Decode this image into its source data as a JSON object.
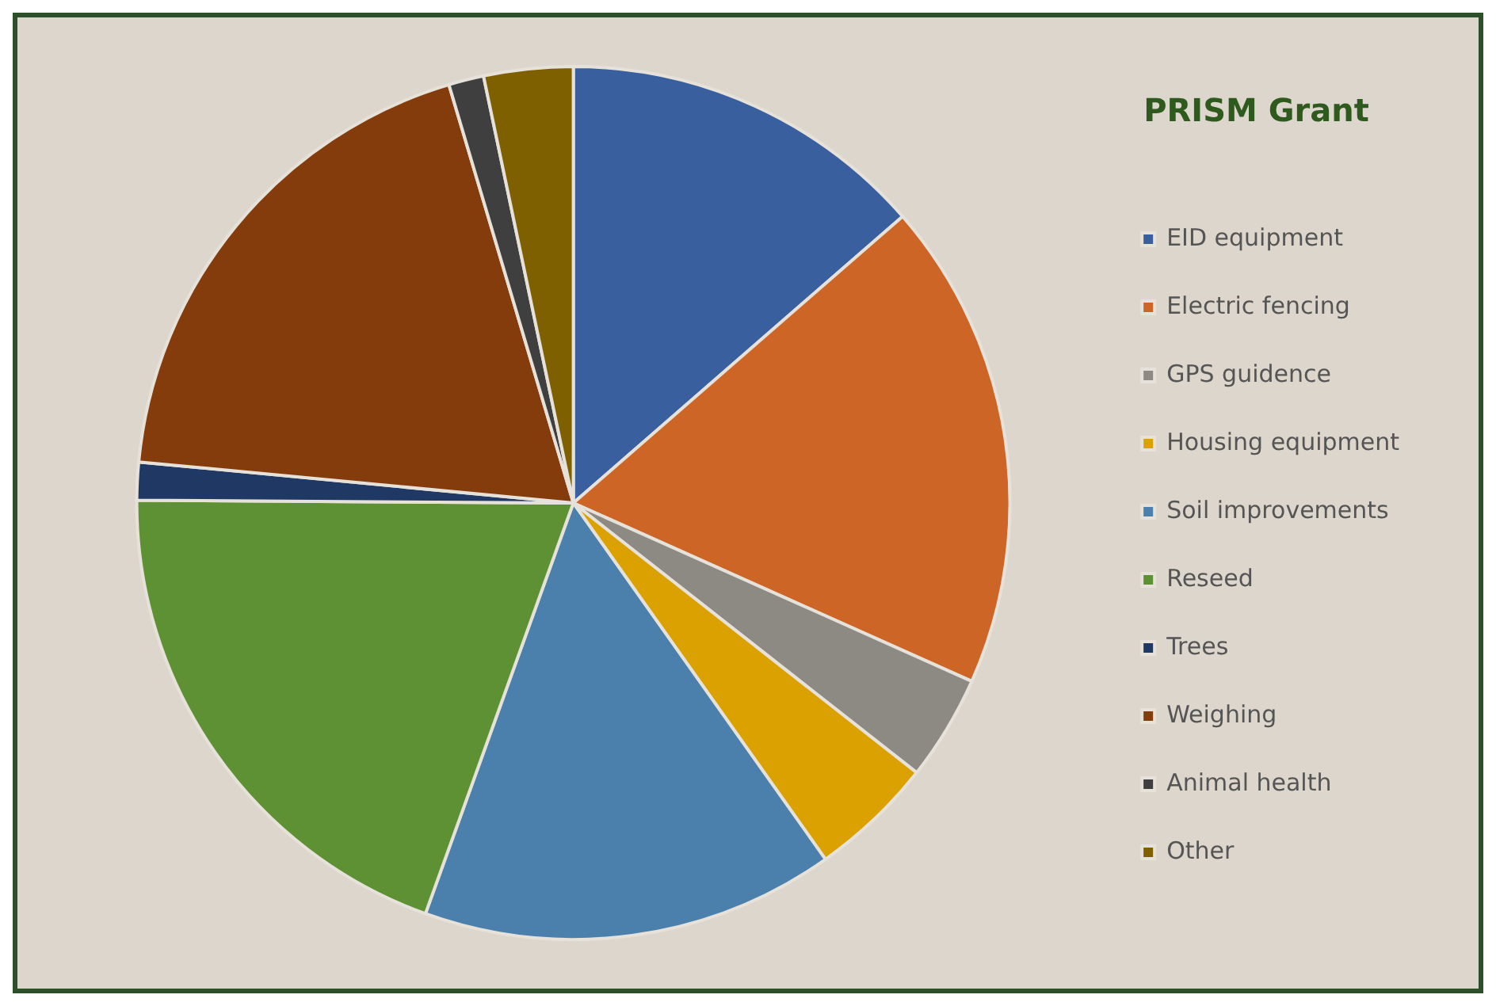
{
  "chart_data": {
    "type": "pie",
    "title": "PRISM Grant",
    "categories": [
      "EID equipment",
      "Electric fencing",
      "GPS guidence",
      "Housing equipment",
      "Soil improvements",
      "Reseed",
      "Trees",
      "Weighing",
      "Animal health",
      "Other"
    ],
    "values": [
      13.6,
      18.1,
      3.9,
      4.6,
      15.3,
      19.6,
      1.4,
      18.9,
      1.3,
      3.3
    ],
    "colors": [
      "#3a5f9e",
      "#cd6527",
      "#8c8a83",
      "#dba100",
      "#4a80ab",
      "#5e9133",
      "#1f3864",
      "#843c0c",
      "#3f3f3f",
      "#7f6000"
    ],
    "legend": "right"
  }
}
